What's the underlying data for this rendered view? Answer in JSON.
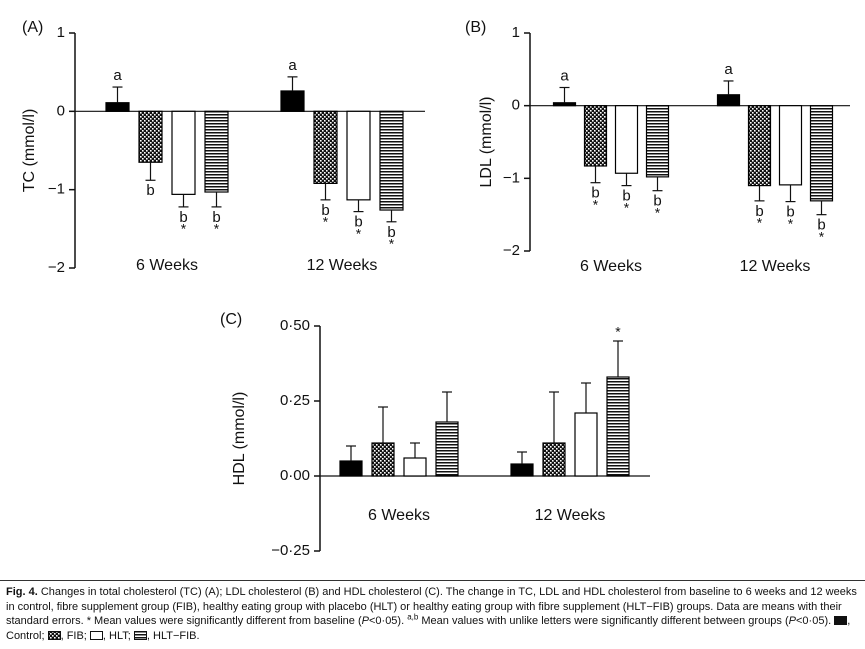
{
  "chart_data": [
    {
      "type": "bar",
      "panel": "(A)",
      "ylabel": "TC (mmol/l)",
      "categories": [
        "6 Weeks",
        "12 Weeks"
      ],
      "ylim": [
        -2,
        1
      ],
      "yticks": [
        {
          "value": -2,
          "label": "−2"
        },
        {
          "value": -1,
          "label": "−1"
        },
        0,
        1
      ],
      "series": [
        {
          "pattern": "solid",
          "color": "#000000",
          "values": [
            0.11,
            0.26
          ],
          "errors": [
            0.2,
            0.18
          ],
          "letters": [
            "a",
            "a"
          ],
          "stars": [
            null,
            null
          ]
        },
        {
          "pattern": "cross",
          "color": "#000000",
          "values": [
            -0.65,
            -0.92
          ],
          "errors": [
            0.23,
            0.21
          ],
          "letters": [
            "b",
            "b"
          ],
          "stars": [
            null,
            "*"
          ]
        },
        {
          "pattern": "none",
          "color": "#000000",
          "values": [
            -1.06,
            -1.13
          ],
          "errors": [
            0.16,
            0.15
          ],
          "letters": [
            "b",
            "b"
          ],
          "stars": [
            "*",
            "*"
          ]
        },
        {
          "pattern": "hstripe",
          "color": "#000000",
          "values": [
            -1.03,
            -1.26
          ],
          "errors": [
            0.19,
            0.15
          ],
          "letters": [
            "b",
            "b"
          ],
          "stars": [
            "*",
            "*"
          ]
        }
      ]
    },
    {
      "type": "bar",
      "panel": "(B)",
      "ylabel": "LDL (mmol/l)",
      "categories": [
        "6 Weeks",
        "12 Weeks"
      ],
      "ylim": [
        -2,
        1
      ],
      "yticks": [
        {
          "value": -2,
          "label": "−2"
        },
        {
          "value": -1,
          "label": "−1"
        },
        0,
        1
      ],
      "series": [
        {
          "pattern": "solid",
          "color": "#000000",
          "values": [
            0.04,
            0.15
          ],
          "errors": [
            0.21,
            0.19
          ],
          "letters": [
            "a",
            "a"
          ],
          "stars": [
            null,
            null
          ]
        },
        {
          "pattern": "cross",
          "color": "#000000",
          "values": [
            -0.83,
            -1.1
          ],
          "errors": [
            0.23,
            0.21
          ],
          "letters": [
            "b",
            "b"
          ],
          "stars": [
            "*",
            "*"
          ]
        },
        {
          "pattern": "none",
          "color": "#000000",
          "values": [
            -0.93,
            -1.09
          ],
          "errors": [
            0.17,
            0.23
          ],
          "letters": [
            "b",
            "b"
          ],
          "stars": [
            "*",
            "*"
          ]
        },
        {
          "pattern": "hstripe",
          "color": "#000000",
          "values": [
            -0.98,
            -1.31
          ],
          "errors": [
            0.19,
            0.19
          ],
          "letters": [
            "b",
            "b"
          ],
          "stars": [
            "*",
            "*"
          ]
        }
      ]
    },
    {
      "type": "bar",
      "panel": "(C)",
      "ylabel": "HDL (mmol/l)",
      "categories": [
        "6 Weeks",
        "12 Weeks"
      ],
      "ylim": [
        -0.25,
        0.5
      ],
      "yticks": [
        {
          "value": -0.25,
          "label": "−0·25"
        },
        {
          "value": 0,
          "label": "0·00"
        },
        {
          "value": 0.25,
          "label": "0·25"
        },
        {
          "value": 0.5,
          "label": "0·50"
        }
      ],
      "series": [
        {
          "pattern": "solid",
          "color": "#000000",
          "values": [
            0.05,
            0.04
          ],
          "errors": [
            0.05,
            0.04
          ],
          "stars": [
            null,
            null
          ]
        },
        {
          "pattern": "cross",
          "color": "#000000",
          "values": [
            0.11,
            0.11
          ],
          "errors": [
            0.12,
            0.17
          ],
          "stars": [
            null,
            null
          ]
        },
        {
          "pattern": "none",
          "color": "#000000",
          "values": [
            0.06,
            0.21
          ],
          "errors": [
            0.05,
            0.1
          ],
          "stars": [
            null,
            null
          ]
        },
        {
          "pattern": "hstripe",
          "color": "#000000",
          "values": [
            0.18,
            0.33
          ],
          "errors": [
            0.1,
            0.12
          ],
          "stars": [
            null,
            "*"
          ]
        }
      ]
    }
  ],
  "caption": [
    {
      "text": "Fig. 4.",
      "style": "b"
    },
    {
      "text": " Changes in total cholesterol (TC) (A); LDL cholesterol (B) and HDL cholesterol (C). The change in TC, LDL and HDL cholesterol from baseline to 6 weeks and 12 weeks in control, fibre supplement group (FIB), healthy eating group with placebo (HLT) or healthy eating group with fibre supplement (HLT−FIB) groups. Data are means with their standard errors. * Mean values were significantly different from baseline ("
    },
    {
      "text": "P",
      "style": "i"
    },
    {
      "text": "<0·05). "
    },
    {
      "text": "a,b",
      "style": "sup"
    },
    {
      "text": " Mean values with unlike letters were significantly different between groups ("
    },
    {
      "text": "P",
      "style": "i"
    },
    {
      "text": "<0·05). "
    },
    {
      "swatch": "solid"
    },
    {
      "text": ", Control; "
    },
    {
      "swatch": "cross"
    },
    {
      "text": ", FIB; "
    },
    {
      "swatch": "none"
    },
    {
      "text": ", HLT; "
    },
    {
      "swatch": "hstripe"
    },
    {
      "text": ", HLT−FIB."
    }
  ]
}
